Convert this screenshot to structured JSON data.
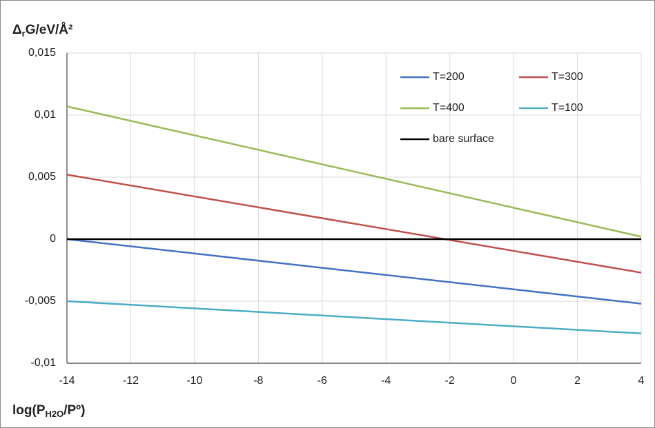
{
  "chart_data": {
    "type": "line",
    "y_label": [
      "Δ",
      "r",
      "G/eV/Å²"
    ],
    "x_label": [
      "log(P",
      "H2O",
      "/Pº)"
    ],
    "x": [
      -14,
      4
    ],
    "series": [
      {
        "name": "T=200",
        "color": "#4472c4",
        "values": [
          0,
          -0.0052
        ]
      },
      {
        "name": "T=300",
        "color": "#c0504d",
        "values": [
          0.0052,
          -0.0027
        ]
      },
      {
        "name": "T=400",
        "color": "#9bbb59",
        "values": [
          0.0107,
          0.0002
        ]
      },
      {
        "name": "T=100",
        "color": "#4bacc6",
        "values": [
          -0.005,
          -0.0076
        ]
      },
      {
        "name": "bare surface",
        "color": "#000000",
        "values": [
          0,
          0
        ]
      }
    ],
    "xlim": [
      -14,
      4
    ],
    "xticks": [
      -14,
      -12,
      -10,
      -8,
      -6,
      -4,
      -2,
      0,
      2,
      4
    ],
    "ylim": [
      -0.01,
      0.015
    ],
    "yticks": [
      {
        "value": -0.01,
        "label": "-0,01"
      },
      {
        "value": -0.005,
        "label": "-0,005"
      },
      0,
      {
        "value": 0.005,
        "label": "0,005"
      },
      {
        "value": 0.01,
        "label": "0,01"
      },
      {
        "value": 0.015,
        "label": "0,015"
      }
    ],
    "grid": true,
    "legend": "upper right"
  }
}
